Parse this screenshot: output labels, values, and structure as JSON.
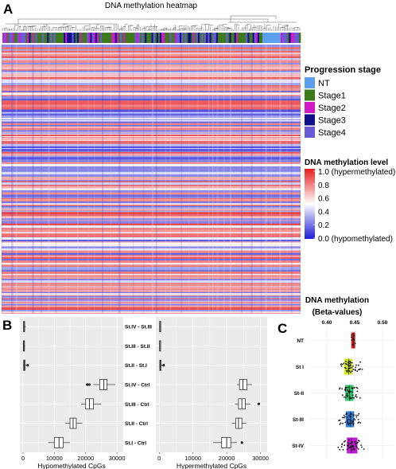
{
  "panel_labels": {
    "a": "A",
    "b": "B",
    "c": "C"
  },
  "heatmap": {
    "title": "DNA methylation heatmap",
    "stage_legend": {
      "title": "Progression stage",
      "items": [
        {
          "label": "NT",
          "color": "#5aa0ef"
        },
        {
          "label": "Stage1",
          "color": "#3d7a1c"
        },
        {
          "label": "Stage2",
          "color": "#d319c4"
        },
        {
          "label": "Stage3",
          "color": "#10108a"
        },
        {
          "label": "Stage4",
          "color": "#6a5ad8"
        }
      ]
    },
    "color_legend": {
      "title": "DNA methylation level",
      "ticks": [
        "1.0 (hypermethylated)",
        "0.8",
        "0.6",
        "0.4",
        "0.2",
        "0.0 (hypomethylated)"
      ],
      "colors": {
        "high": "#e81d1d",
        "mid": "#ffffff",
        "low": "#1c1cd6"
      }
    }
  },
  "chart_data": [
    {
      "type": "box",
      "xlabel": "Hypomethylated CpGs",
      "xlim": [
        -1000,
        32000
      ],
      "xticks": [
        "0",
        "10000",
        "20000",
        "30000"
      ],
      "categories": [
        "St.IV - St.III",
        "St.III - St.II",
        "St.II - St.I",
        "St.IV - Ctrl",
        "St.III - Ctrl",
        "St.II - Ctrl",
        "St.I - Ctrl"
      ],
      "boxes": [
        {
          "min": 0,
          "q1": 150,
          "median": 300,
          "q3": 500,
          "max": 900,
          "outliers": []
        },
        {
          "min": 0,
          "q1": 100,
          "median": 250,
          "q3": 400,
          "max": 700,
          "outliers": []
        },
        {
          "min": 0,
          "q1": 200,
          "median": 400,
          "q3": 650,
          "max": 1100,
          "outliers": [
            1500
          ]
        },
        {
          "min": 22500,
          "q1": 24500,
          "median": 25800,
          "q3": 26800,
          "max": 29500,
          "outliers": [
            20500,
            21200
          ]
        },
        {
          "min": 18500,
          "q1": 20000,
          "median": 21200,
          "q3": 22500,
          "max": 25000,
          "outliers": []
        },
        {
          "min": 13500,
          "q1": 15000,
          "median": 16000,
          "q3": 17000,
          "max": 19000,
          "outliers": []
        },
        {
          "min": 8000,
          "q1": 10000,
          "median": 11500,
          "q3": 12800,
          "max": 15000,
          "outliers": []
        }
      ]
    },
    {
      "type": "box",
      "xlabel": "Hypermethylated CpGs",
      "xlim": [
        -1000,
        32000
      ],
      "xticks": [
        "0",
        "10000",
        "20000",
        "30000"
      ],
      "categories": [
        "St.IV - St.III",
        "St.III - St.II",
        "St.II - St.I",
        "St.IV - Ctrl",
        "St.III - Ctrl",
        "St.II - Ctrl",
        "St.I - Ctrl"
      ],
      "boxes": [
        {
          "min": 0,
          "q1": 100,
          "median": 200,
          "q3": 350,
          "max": 600,
          "outliers": []
        },
        {
          "min": 0,
          "q1": 80,
          "median": 150,
          "q3": 250,
          "max": 450,
          "outliers": []
        },
        {
          "min": 0,
          "q1": 150,
          "median": 300,
          "q3": 500,
          "max": 900,
          "outliers": [
            1300
          ]
        },
        {
          "min": 23000,
          "q1": 23800,
          "median": 24800,
          "q3": 26000,
          "max": 27500,
          "outliers": []
        },
        {
          "min": 22500,
          "q1": 23500,
          "median": 24500,
          "q3": 25500,
          "max": 27000,
          "outliers": [
            29500
          ]
        },
        {
          "min": 21500,
          "q1": 22700,
          "median": 23500,
          "q3": 24500,
          "max": 25800,
          "outliers": []
        },
        {
          "min": 16000,
          "q1": 18500,
          "median": 20000,
          "q3": 21200,
          "max": 23000,
          "outliers": [
            24500
          ]
        }
      ]
    },
    {
      "type": "box",
      "title": "DNA methylation",
      "subtitle": "(Beta-values)",
      "xlim": [
        0.37,
        0.52
      ],
      "xticks": [
        0.4,
        0.45,
        0.5
      ],
      "xtick_labels": [
        "0.40",
        "0.45",
        "0.50"
      ],
      "categories": [
        "NT",
        "St I",
        "St-II",
        "St-III",
        "St-IV"
      ],
      "colors": [
        "#e41a1c",
        "#d8ec18",
        "#31c86a",
        "#2f7ad6",
        "#c31bd6"
      ],
      "boxes": [
        {
          "q1": 0.444,
          "median": 0.448,
          "q3": 0.451,
          "min": 0.438,
          "max": 0.458
        },
        {
          "q1": 0.431,
          "median": 0.439,
          "q3": 0.446,
          "min": 0.41,
          "max": 0.47
        },
        {
          "q1": 0.433,
          "median": 0.441,
          "q3": 0.448,
          "min": 0.415,
          "max": 0.468
        },
        {
          "q1": 0.434,
          "median": 0.442,
          "q3": 0.449,
          "min": 0.412,
          "max": 0.472
        },
        {
          "q1": 0.436,
          "median": 0.444,
          "q3": 0.455,
          "min": 0.41,
          "max": 0.478
        }
      ]
    }
  ]
}
